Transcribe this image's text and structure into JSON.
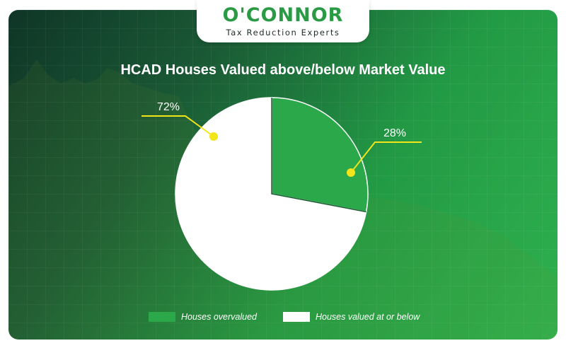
{
  "brand": {
    "logo_text": "O'CONNOR",
    "tagline": "Tax Reduction Experts"
  },
  "colors": {
    "overvalued": "#2aa84a",
    "at_or_below": "#ffffff",
    "leader_line": "#f2e51a",
    "brand_green": "#2a9a45"
  },
  "chart_data": {
    "type": "pie",
    "title": "HCAD Houses Valued above/below Market Value",
    "slices": [
      {
        "label": "Houses overvalued",
        "value": 28,
        "display": "28%"
      },
      {
        "label": "Houses valued at or below",
        "value": 72,
        "display": "72%"
      }
    ],
    "legend": [
      "Houses overvalued",
      "Houses valued at or below"
    ],
    "legend_position": "bottom"
  }
}
